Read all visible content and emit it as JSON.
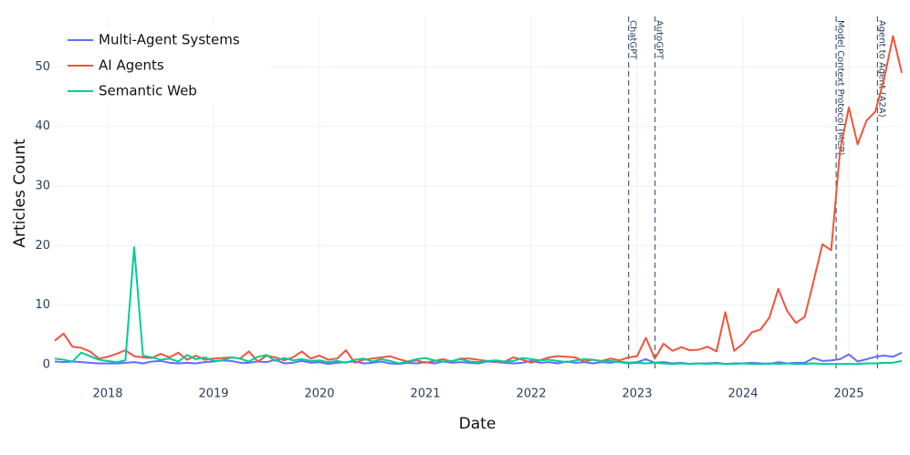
{
  "chart_data": {
    "type": "line",
    "xlabel": "Date",
    "ylabel": "Articles Count",
    "x": [
      2017.5,
      2017.583,
      2017.667,
      2017.75,
      2017.833,
      2017.917,
      2018,
      2018.083,
      2018.167,
      2018.25,
      2018.333,
      2018.417,
      2018.5,
      2018.583,
      2018.667,
      2018.75,
      2018.833,
      2018.917,
      2019,
      2019.083,
      2019.167,
      2019.25,
      2019.333,
      2019.417,
      2019.5,
      2019.583,
      2019.667,
      2019.75,
      2019.833,
      2019.917,
      2020,
      2020.083,
      2020.167,
      2020.25,
      2020.333,
      2020.417,
      2020.5,
      2020.583,
      2020.667,
      2020.75,
      2020.833,
      2020.917,
      2021,
      2021.083,
      2021.167,
      2021.25,
      2021.333,
      2021.417,
      2021.5,
      2021.583,
      2021.667,
      2021.75,
      2021.833,
      2021.917,
      2022,
      2022.083,
      2022.167,
      2022.25,
      2022.333,
      2022.417,
      2022.5,
      2022.583,
      2022.667,
      2022.75,
      2022.833,
      2022.917,
      2023,
      2023.083,
      2023.167,
      2023.25,
      2023.333,
      2023.417,
      2023.5,
      2023.583,
      2023.667,
      2023.75,
      2023.833,
      2023.917,
      2024,
      2024.083,
      2024.167,
      2024.25,
      2024.333,
      2024.417,
      2024.5,
      2024.583,
      2024.667,
      2024.75,
      2024.833,
      2024.917,
      2025,
      2025.083,
      2025.167,
      2025.25,
      2025.333,
      2025.417,
      2025.5
    ],
    "series": [
      {
        "name": "Multi-Agent Systems",
        "color": "#636efa",
        "values": [
          0.5,
          0.4,
          0.5,
          0.4,
          0.3,
          0.2,
          0.2,
          0.2,
          0.3,
          0.4,
          0.2,
          0.5,
          0.6,
          0.3,
          0.2,
          0.3,
          0.2,
          0.4,
          0.5,
          0.7,
          0.6,
          0.3,
          0.3,
          0.5,
          0.4,
          0.8,
          0.2,
          0.3,
          0.6,
          0.3,
          0.4,
          0.1,
          0.3,
          0.4,
          0.5,
          0.2,
          0.3,
          0.5,
          0.2,
          0.1,
          0.3,
          0.2,
          0.4,
          0.2,
          0.5,
          0.3,
          0.4,
          0.3,
          0.2,
          0.5,
          0.4,
          0.3,
          0.2,
          0.3,
          0.6,
          0.3,
          0.4,
          0.2,
          0.5,
          0.3,
          0.4,
          0.2,
          0.4,
          0.3,
          0.5,
          0.3,
          0.4,
          0.9,
          0.3,
          0.4,
          0.2,
          0.3,
          0.1,
          0.2,
          0.2,
          0.3,
          0.1,
          0.2,
          0.2,
          0.3,
          0.2,
          0.1,
          0.4,
          0.2,
          0.3,
          0.3,
          1.1,
          0.6,
          0.7,
          0.9,
          1.7,
          0.5,
          0.9,
          1.3,
          1.5,
          1.3,
          2.0
        ]
      },
      {
        "name": "AI Agents",
        "color": "#ef553b",
        "values": [
          4,
          5.2,
          3,
          2.8,
          2.2,
          1,
          1.3,
          1.8,
          2.4,
          1.4,
          1.2,
          1.1,
          1.8,
          1.2,
          2.0,
          0.8,
          1.5,
          0.8,
          1.0,
          1.1,
          1.2,
          1.0,
          2.2,
          0.5,
          1.5,
          1.2,
          0.7,
          1.2,
          2.2,
          1.0,
          1.5,
          0.8,
          1.0,
          2.4,
          0.3,
          0.8,
          1.0,
          1.2,
          1.4,
          0.9,
          0.5,
          0.7,
          0.3,
          0.6,
          0.9,
          0.5,
          1.0,
          1.0,
          0.8,
          0.6,
          0.5,
          0.5,
          1.2,
          0.8,
          0.3,
          0.7,
          1.2,
          1.4,
          1.3,
          1.2,
          0.5,
          0.8,
          0.6,
          1.0,
          0.7,
          1.2,
          1.4,
          4.5,
          1.0,
          3.5,
          2.3,
          2.9,
          2.4,
          2.5,
          3.0,
          2.2,
          8.8,
          2.3,
          3.5,
          5.4,
          5.9,
          7.9,
          12.7,
          9.0,
          7.0,
          8.0,
          14.0,
          20.2,
          19.2,
          36.0,
          43.2,
          37,
          41,
          42.5,
          48,
          55.2,
          49
        ]
      },
      {
        "name": "Semantic Web",
        "color": "#00cc96",
        "values": [
          1,
          0.8,
          0.5,
          2,
          1.4,
          0.8,
          0.6,
          0.4,
          0.7,
          19.7,
          1.5,
          1.2,
          0.8,
          1,
          0.5,
          1.6,
          0.9,
          1.2,
          0.6,
          0.7,
          1.2,
          1.0,
          0.5,
          1.3,
          1.6,
          0.6,
          1.1,
          0.7,
          0.9,
          0.6,
          0.7,
          0.4,
          0.6,
          0.3,
          0.8,
          1.0,
          0.5,
          0.9,
          0.6,
          0.2,
          0.5,
          0.9,
          1.1,
          0.7,
          0.5,
          0.6,
          0.9,
          0.5,
          0.4,
          0.6,
          0.7,
          0.5,
          0.6,
          1.1,
          0.9,
          0.7,
          0.8,
          0.6,
          0.4,
          0.7,
          0.9,
          0.8,
          0.5,
          0.6,
          0.4,
          0.2,
          0.3,
          0.2,
          0.3,
          0.2,
          0.1,
          0.2,
          0.1,
          0.2,
          0.1,
          0.2,
          0.1,
          0.1,
          0.2,
          0.1,
          0.1,
          0.2,
          0.1,
          0.2,
          0.1,
          0.1,
          0.2,
          0.1,
          0.1,
          0.1,
          0.1,
          0.1,
          0.2,
          0.2,
          0.3,
          0.3,
          0.6
        ]
      }
    ],
    "annotations": [
      {
        "x": 2022.92,
        "text": "ChatGPT"
      },
      {
        "x": 2023.17,
        "text": "AutoGPT"
      },
      {
        "x": 2024.88,
        "text": "Model Context Protocol (MCP)"
      },
      {
        "x": 2025.27,
        "text": "Agent to Agent (A2A)"
      }
    ],
    "xlim": [
      2017.5,
      2025.5
    ],
    "xticks": [
      2018,
      2019,
      2020,
      2021,
      2022,
      2023,
      2024,
      2025
    ],
    "ylim": [
      -0.8,
      58.5
    ],
    "yticks": [
      0,
      10,
      20,
      30,
      40,
      50
    ],
    "grid": true,
    "legend": "top-left"
  }
}
